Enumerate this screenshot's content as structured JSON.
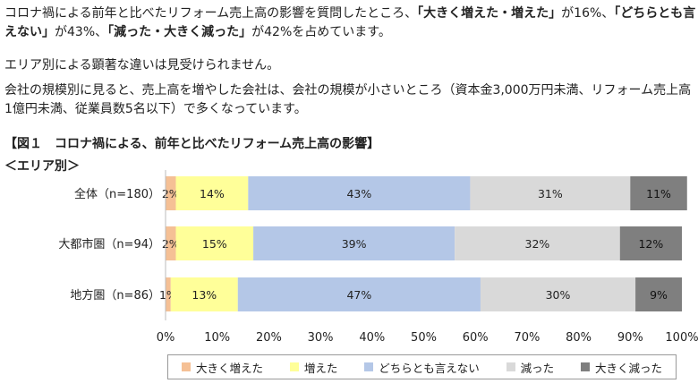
{
  "text": {
    "p1_a": "コロナ禍による前年と比べたリフォーム売上高の影響を質問したところ、",
    "p1_b": "「大きく増えた・増えた」",
    "p1_c": "が16%、",
    "p1_d": "「どちらとも言えない」",
    "p1_e": "が43%、",
    "p1_f": "「減った・大きく減った」",
    "p1_g": "が42%を占めています。",
    "p2": "エリア別による顕著な違いは見受けられません。",
    "p3": "会社の規模別に見ると、売上高を増やした会社は、会社の規模が小さいところ（資本金3,000万円未満、リフォーム売上高1億円未満、従業員数5名以下）で多くなっています。",
    "fig_title": "【図１　コロナ禍による、前年と比べたリフォーム売上高の影響】",
    "sub_title": "＜エリア別＞"
  },
  "chart_data": {
    "type": "bar",
    "orientation": "horizontal",
    "stacked": true,
    "categories": [
      "全体（n=180）",
      "大都市圏（n=94）",
      "地方圏（n=86）"
    ],
    "series": [
      {
        "name": "大きく増えた",
        "color": "#f5c095",
        "values": [
          2,
          2,
          1
        ],
        "labels": [
          "2%",
          "2%",
          "1%"
        ]
      },
      {
        "name": "増えた",
        "color": "#ffff99",
        "values": [
          14,
          15,
          13
        ],
        "labels": [
          "14%",
          "15%",
          "13%"
        ]
      },
      {
        "name": "どちらとも言えない",
        "color": "#b4c7e7",
        "values": [
          43,
          39,
          47
        ],
        "labels": [
          "43%",
          "39%",
          "47%"
        ]
      },
      {
        "name": "減った",
        "color": "#d9d9d9",
        "values": [
          31,
          32,
          30
        ],
        "labels": [
          "31%",
          "32%",
          "30%"
        ]
      },
      {
        "name": "大きく減った",
        "color": "#7f7f7f",
        "values": [
          11,
          12,
          9
        ],
        "labels": [
          "11%",
          "12%",
          "9%"
        ]
      }
    ],
    "xlim": [
      0,
      100
    ],
    "xticks": [
      "0%",
      "10%",
      "20%",
      "30%",
      "40%",
      "50%",
      "60%",
      "70%",
      "80%",
      "90%",
      "100%"
    ],
    "grid": false,
    "legend_position": "bottom"
  }
}
